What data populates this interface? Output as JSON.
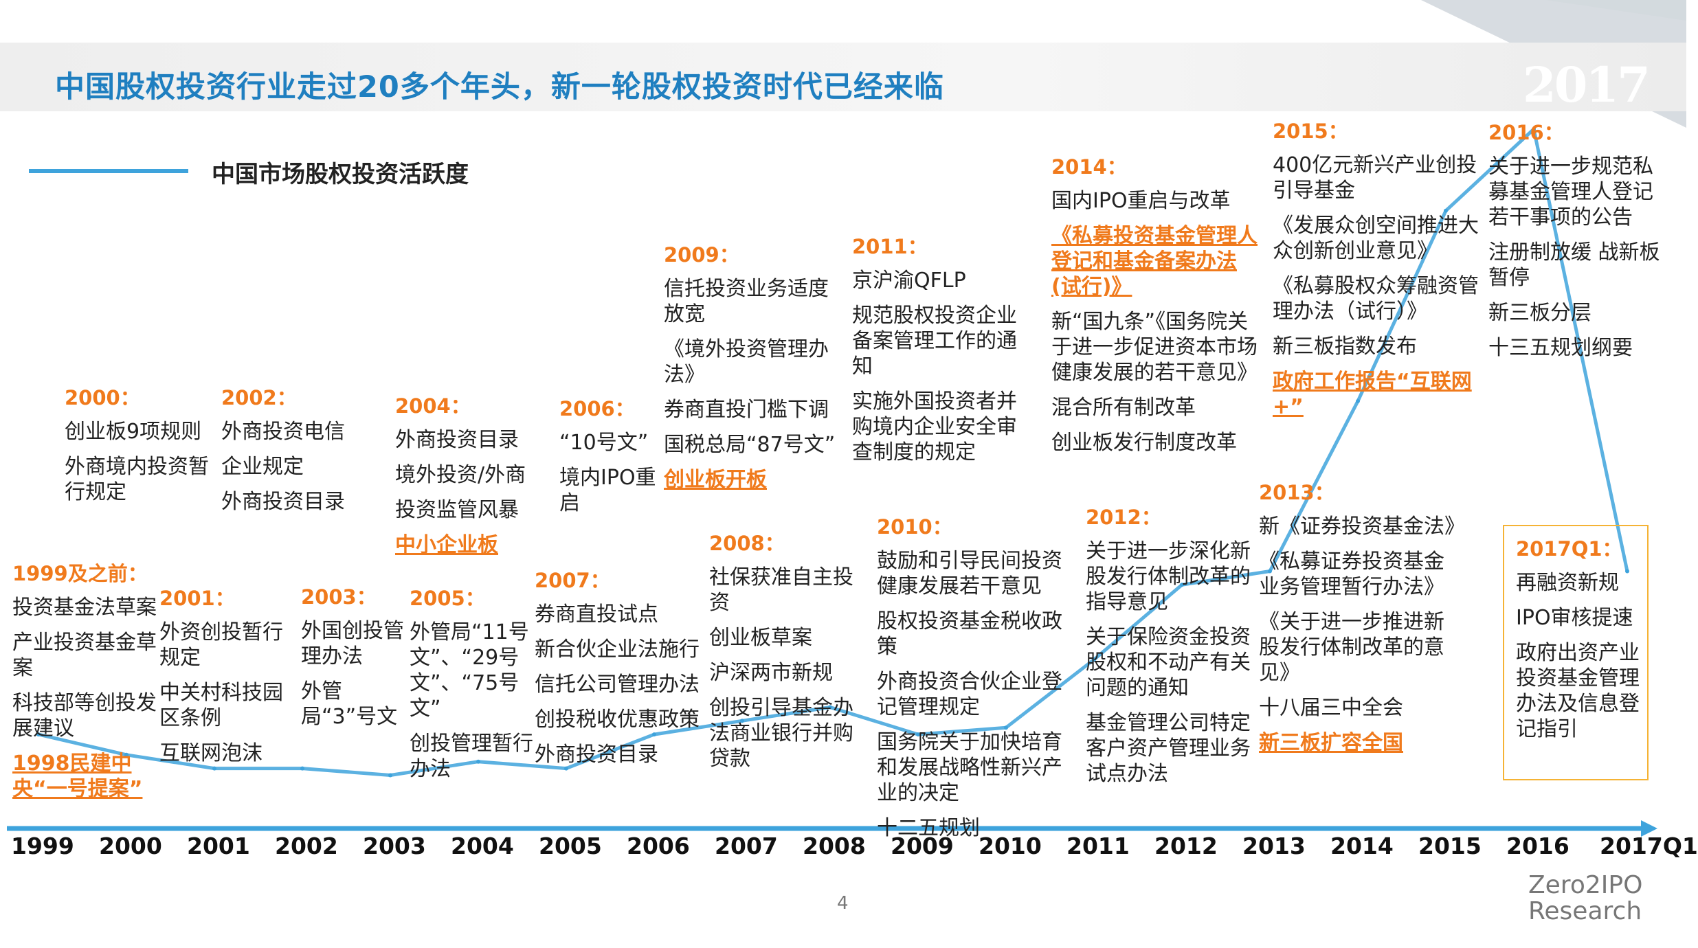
{
  "title": "中国股权投资行业走过20多个年头，新一轮股权投资时代已经来临",
  "year_badge": "2017",
  "legend_label": "中国市场股权投资活跃度",
  "page_number": "4",
  "logo": [
    "Zero2IPO",
    "Research"
  ],
  "colors": {
    "title": "#1f7fc0",
    "line": "#3ea3dc",
    "highlight": "#f07a1c",
    "box": "#f5b335"
  },
  "chart_data": {
    "type": "line",
    "title": "",
    "xlabel": "",
    "ylabel": "",
    "series": [
      {
        "name": "中国市场股权投资活跃度",
        "x": [
          "1999",
          "2000",
          "2001",
          "2002",
          "2003",
          "2004",
          "2005",
          "2006",
          "2007",
          "2008",
          "2009",
          "2010",
          "2011",
          "2012",
          "2013",
          "2014",
          "2015",
          "2016",
          "2017Q1"
        ],
        "values": [
          11,
          8,
          6,
          6,
          5,
          7,
          6,
          11,
          13,
          15,
          11,
          12,
          22,
          33,
          35,
          60,
          88,
          100,
          35
        ]
      }
    ],
    "categories": [
      "1999",
      "2000",
      "2001",
      "2002",
      "2003",
      "2004",
      "2005",
      "2006",
      "2007",
      "2008",
      "2009",
      "2010",
      "2011",
      "2012",
      "2013",
      "2014",
      "2015",
      "2016",
      "2017Q1"
    ],
    "grid": false,
    "legend": "top-left"
  },
  "events": [
    {
      "year": "1999及之前：",
      "items": [
        {
          "text": "投资基金法草案",
          "highlight": false
        },
        {
          "text": "产业投资基金草案",
          "highlight": false
        },
        {
          "text": "科技部等创投发展建议",
          "highlight": false
        },
        {
          "text": "1998民建中央“一号提案”",
          "highlight": true
        }
      ]
    },
    {
      "year": "2000：",
      "items": [
        {
          "text": "创业板9项规则",
          "highlight": false
        },
        {
          "text": "外商境内投资暂行规定",
          "highlight": false
        }
      ]
    },
    {
      "year": "2001：",
      "items": [
        {
          "text": "外资创投暂行规定",
          "highlight": false
        },
        {
          "text": "中关村科技园区条例",
          "highlight": false
        },
        {
          "text": "互联网泡沫",
          "highlight": false
        }
      ]
    },
    {
      "year": "2002：",
      "items": [
        {
          "text": "外商投资电信",
          "highlight": false
        },
        {
          "text": "企业规定",
          "highlight": false
        },
        {
          "text": "外商投资目录",
          "highlight": false
        }
      ]
    },
    {
      "year": "2003：",
      "items": [
        {
          "text": "外国创投管理办法",
          "highlight": false
        },
        {
          "text": "外管局“3”号文",
          "highlight": false
        }
      ]
    },
    {
      "year": "2004：",
      "items": [
        {
          "text": "外商投资目录",
          "highlight": false
        },
        {
          "text": "境外投资/外商",
          "highlight": false
        },
        {
          "text": "投资监管风暴",
          "highlight": false
        },
        {
          "text": "中小企业板",
          "highlight": true
        }
      ]
    },
    {
      "year": "2005：",
      "items": [
        {
          "text": "外管局“11号文”、“29号文”、“75号文”",
          "highlight": false
        },
        {
          "text": "创投管理暂行办法",
          "highlight": false
        }
      ]
    },
    {
      "year": "2006：",
      "items": [
        {
          "text": "“10号文”",
          "highlight": false
        },
        {
          "text": "境内IPO重启",
          "highlight": false
        }
      ]
    },
    {
      "year": "2007：",
      "items": [
        {
          "text": "券商直投试点",
          "highlight": false
        },
        {
          "text": "新合伙企业法施行",
          "highlight": false
        },
        {
          "text": "信托公司管理办法",
          "highlight": false
        },
        {
          "text": "创投税收优惠政策",
          "highlight": false
        },
        {
          "text": "外商投资目录",
          "highlight": false
        }
      ]
    },
    {
      "year": "2008：",
      "items": [
        {
          "text": "社保获准自主投资",
          "highlight": false
        },
        {
          "text": "创业板草案",
          "highlight": false
        },
        {
          "text": "沪深两市新规",
          "highlight": false
        },
        {
          "text": "创投引导基金办法商业银行并购贷款",
          "highlight": false
        }
      ]
    },
    {
      "year": "2009：",
      "items": [
        {
          "text": "信托投资业务适度放宽",
          "highlight": false
        },
        {
          "text": "《境外投资管理办法》",
          "highlight": false
        },
        {
          "text": "券商直投门槛下调",
          "highlight": false
        },
        {
          "text": "国税总局“87号文”",
          "highlight": false
        },
        {
          "text": "创业板开板",
          "highlight": true
        }
      ]
    },
    {
      "year": "2010：",
      "items": [
        {
          "text": "鼓励和引导民间投资健康发展若干意见",
          "highlight": false
        },
        {
          "text": "股权投资基金税收政策",
          "highlight": false
        },
        {
          "text": "外商投资合伙企业登记管理规定",
          "highlight": false
        },
        {
          "text": "国务院关于加快培育和发展战略性新兴产业的决定",
          "highlight": false
        },
        {
          "text": "十二五规划",
          "highlight": false
        }
      ]
    },
    {
      "year": "2011：",
      "items": [
        {
          "text": "京沪渝QFLP",
          "highlight": false
        },
        {
          "text": "规范股权投资企业备案管理工作的通知",
          "highlight": false
        },
        {
          "text": "实施外国投资者并购境内企业安全审查制度的规定",
          "highlight": false
        }
      ]
    },
    {
      "year": "2012：",
      "items": [
        {
          "text": "关于进一步深化新股发行体制改革的指导意见",
          "highlight": false
        },
        {
          "text": "关于保险资金投资股权和不动产有关问题的通知",
          "highlight": false
        },
        {
          "text": "基金管理公司特定客户资产管理业务试点办法",
          "highlight": false
        }
      ]
    },
    {
      "year": "2013：",
      "items": [
        {
          "text": "新《证券投资基金法》",
          "highlight": false
        },
        {
          "text": "《私募证券投资基金业务管理暂行办法》",
          "highlight": false
        },
        {
          "text": "《关于进一步推进新股发行体制改革的意见》",
          "highlight": false
        },
        {
          "text": "十八届三中全会",
          "highlight": false
        },
        {
          "text": "新三板扩容全国",
          "highlight": true
        }
      ]
    },
    {
      "year": "2014：",
      "items": [
        {
          "text": "国内IPO重启与改革",
          "highlight": false
        },
        {
          "text": "《私募投资基金管理人登记和基金备案办法(试行)》",
          "highlight": true
        },
        {
          "text": "新“国九条”《国务院关于进一步促进资本市场健康发展的若干意见》",
          "highlight": false
        },
        {
          "text": "混合所有制改革",
          "highlight": false
        },
        {
          "text": "创业板发行制度改革",
          "highlight": false
        }
      ]
    },
    {
      "year": "2015：",
      "items": [
        {
          "text": "400亿元新兴产业创投引导基金",
          "highlight": false
        },
        {
          "text": "《发展众创空间推进大众创新创业意见》",
          "highlight": false
        },
        {
          "text": "《私募股权众筹融资管理办法（试行）》",
          "highlight": false
        },
        {
          "text": "新三板指数发布",
          "highlight": false
        },
        {
          "text": "政府工作报告“互联网+”",
          "highlight": true
        }
      ]
    },
    {
      "year": "2016：",
      "items": [
        {
          "text": "关于进一步规范私募基金管理人登记若干事项的公告",
          "highlight": false
        },
        {
          "text": "注册制放缓 战新板暂停",
          "highlight": false
        },
        {
          "text": "新三板分层",
          "highlight": false
        },
        {
          "text": "十三五规划纲要",
          "highlight": false
        }
      ]
    },
    {
      "year": "2017Q1：",
      "items": [
        {
          "text": "再融资新规",
          "highlight": false
        },
        {
          "text": "IPO审核提速",
          "highlight": false
        },
        {
          "text": "政府出资产业投资基金管理办法及信息登记指引",
          "highlight": false
        }
      ]
    }
  ]
}
